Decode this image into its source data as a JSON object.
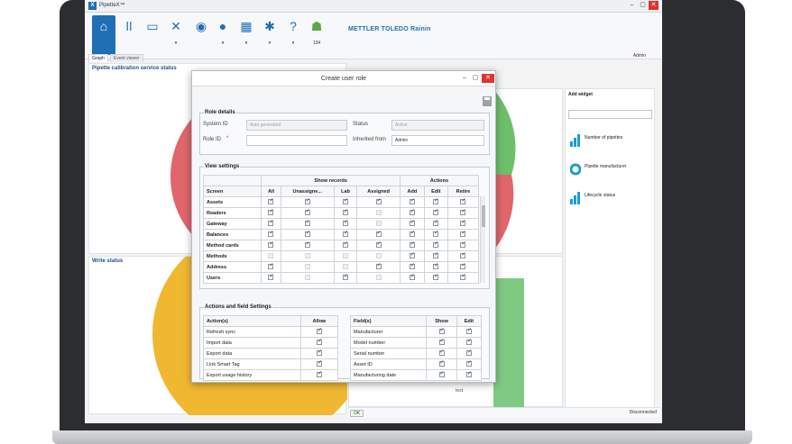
{
  "app": {
    "title": "PipetteX™",
    "logo_letter": "X",
    "brand": "METTLER TOLEDO Rainin",
    "user": "Admin",
    "window_controls": [
      "–",
      "▢",
      "✕"
    ]
  },
  "toolbar": {
    "buttons": [
      {
        "icon": "home-icon",
        "glyph": "⌂"
      },
      {
        "icon": "pipettes-icon",
        "glyph": "ǀǀ"
      },
      {
        "icon": "workstation-icon",
        "glyph": "▭"
      },
      {
        "icon": "tools-icon",
        "glyph": "✕"
      },
      {
        "icon": "location-icon",
        "glyph": "◉"
      },
      {
        "icon": "user-icon",
        "glyph": "●"
      },
      {
        "icon": "calendar-icon",
        "glyph": "▦"
      },
      {
        "icon": "settings-icon",
        "glyph": "✱"
      },
      {
        "icon": "help-icon",
        "glyph": "?"
      },
      {
        "icon": "android-icon",
        "glyph": "☗"
      }
    ],
    "badge": "134"
  },
  "tabs": [
    "Graph",
    "Event viewer"
  ],
  "panels": {
    "calibration": "Pipette calibration service status",
    "write": "Write status",
    "bar_label": "test"
  },
  "widgets": {
    "header": "Add widget",
    "items": [
      "Number of pipettes",
      "Pipette manufacturer",
      "Lifecycle status"
    ]
  },
  "status": {
    "ok": "OK",
    "connection": "Disconnected"
  },
  "modal": {
    "title": "Create user role",
    "role_details": {
      "legend": "Role details",
      "system_id_label": "System ID",
      "system_id_value": "Auto generated",
      "role_id_label": "Role ID",
      "required_mark": "*",
      "status_label": "Status",
      "status_value": "Active",
      "inherited_label": "Inherited from",
      "inherited_value": "Admin"
    },
    "view_settings": {
      "legend": "View settings",
      "group_show": "Show records",
      "group_actions": "Actions",
      "columns": [
        "Screen",
        "All",
        "Unassigne...",
        "Lab",
        "Assigned",
        "Add",
        "Edit",
        "Retire"
      ],
      "rows": [
        {
          "screen": "Assets",
          "checks": [
            1,
            1,
            1,
            1,
            1,
            1,
            1
          ]
        },
        {
          "screen": "Readers",
          "checks": [
            1,
            1,
            1,
            2,
            1,
            1,
            1
          ]
        },
        {
          "screen": "Gateway",
          "checks": [
            1,
            1,
            1,
            2,
            1,
            1,
            1
          ]
        },
        {
          "screen": "Balances",
          "checks": [
            1,
            1,
            1,
            1,
            1,
            1,
            1
          ]
        },
        {
          "screen": "Method cards",
          "checks": [
            1,
            1,
            1,
            1,
            1,
            1,
            1
          ]
        },
        {
          "screen": "Methods",
          "checks": [
            2,
            2,
            2,
            2,
            1,
            1,
            1
          ]
        },
        {
          "screen": "Address",
          "checks": [
            1,
            2,
            2,
            1,
            1,
            1,
            1
          ]
        },
        {
          "screen": "Users",
          "checks": [
            1,
            2,
            1,
            2,
            1,
            1,
            1
          ]
        }
      ]
    },
    "actions_fields": {
      "legend": "Actions and field Settings",
      "actions_header": "Action(s)",
      "allow_header": "Allow",
      "actions": [
        "Refresh sync",
        "Import data",
        "Export data",
        "Link Smart Tag",
        "Export usage history"
      ],
      "fields_header": "Field(s)",
      "show_header": "Show",
      "edit_header": "Edit",
      "fields": [
        "Manufacturer",
        "Model number",
        "Serial number",
        "Asset ID",
        "Manufacturing date"
      ]
    }
  }
}
